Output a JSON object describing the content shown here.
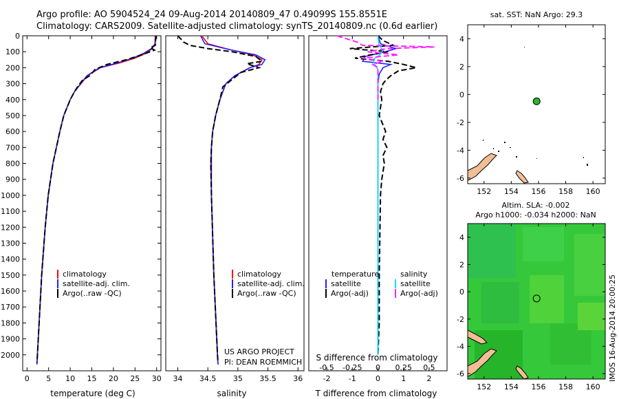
{
  "header": {
    "line1": "Argo profile: AO 5904524_24 09-Aug-2014 20140809_47 0.49099S 155.8551E",
    "line2": "Climatology: CARS2009. Satellite-adjusted climatology: synTS_20140809.nc (0.6d earlier)"
  },
  "footer_stamp": "IMOS 16-Aug-2014 20:00:25",
  "colors": {
    "red": "#ff0000",
    "blue": "#1f1fff",
    "black": "#000000",
    "cyan": "#00e5ff",
    "magenta": "#ff20ff",
    "green_dot": "#2db52d",
    "land": "#f2be96",
    "sla_field": "#33cc33"
  },
  "chart_data": [
    {
      "id": "temperature",
      "type": "line",
      "xlabel": "temperature (deg C)",
      "ylabel": "",
      "xlim": [
        -1,
        31
      ],
      "ylim": [
        2100,
        0
      ],
      "xticks": [
        0,
        5,
        10,
        15,
        20,
        25,
        30
      ],
      "yticks": [
        0,
        100,
        200,
        300,
        400,
        500,
        600,
        700,
        800,
        900,
        1000,
        1100,
        1200,
        1300,
        1400,
        1500,
        1600,
        1700,
        1800,
        1900,
        2000
      ],
      "legend": {
        "placement": "bottom-left",
        "entries": [
          "climatology",
          "satellite-adj. clim.",
          "Argo(..raw -QC)"
        ]
      },
      "series": [
        {
          "name": "climatology",
          "color": "red",
          "style": "solid",
          "depth": [
            0,
            50,
            80,
            110,
            140,
            170,
            200,
            250,
            300,
            350,
            400,
            500,
            600,
            700,
            800,
            1000,
            1200,
            1500,
            2000,
            2060
          ],
          "values": [
            29.7,
            29.6,
            29.0,
            27.5,
            25.0,
            21.5,
            17.0,
            14.0,
            12.5,
            11.0,
            10.0,
            8.5,
            7.6,
            6.8,
            6.0,
            4.9,
            4.2,
            3.4,
            2.4,
            2.3
          ]
        },
        {
          "name": "satellite-adj. clim.",
          "color": "blue",
          "style": "solid",
          "depth": [
            0,
            50,
            80,
            110,
            140,
            170,
            200,
            250,
            300,
            350,
            400,
            500,
            600,
            700,
            800,
            1000,
            1200,
            1500,
            2000,
            2060
          ],
          "values": [
            29.8,
            29.7,
            28.8,
            27.0,
            24.5,
            21.0,
            16.8,
            13.9,
            12.4,
            11.0,
            10.0,
            8.5,
            7.6,
            6.8,
            6.0,
            4.9,
            4.2,
            3.4,
            2.4,
            2.3
          ]
        },
        {
          "name": "Argo(..raw -QC)",
          "color": "black",
          "style": "dashed",
          "depth": [
            0,
            60,
            75,
            90,
            120,
            150,
            180,
            210,
            250,
            280,
            320,
            350,
            400,
            500,
            600,
            700,
            800,
            1000,
            1200,
            1500,
            2000,
            2050
          ],
          "values": [
            29.8,
            29.7,
            28.5,
            29.5,
            26.5,
            23.0,
            18.5,
            15.8,
            14.5,
            12.8,
            11.7,
            11.0,
            10.0,
            8.5,
            7.6,
            6.8,
            6.0,
            4.9,
            4.2,
            3.4,
            2.4,
            2.3
          ]
        }
      ]
    },
    {
      "id": "salinity",
      "type": "line",
      "xlabel": "salinity",
      "ylabel": "",
      "xlim": [
        33.8,
        36.1
      ],
      "ylim": [
        2100,
        0
      ],
      "xticks": [
        34,
        34.5,
        35,
        35.5,
        36
      ],
      "legend": {
        "placement": "bottom-right",
        "entries": [
          "climatology",
          "satellite-adj. clim.",
          "Argo(..raw -QC)"
        ]
      },
      "annotation": [
        "US ARGO PROJECT",
        "PI: DEAN ROEMMICH"
      ],
      "series": [
        {
          "name": "climatology",
          "color": "red",
          "style": "solid",
          "depth": [
            0,
            50,
            90,
            120,
            150,
            180,
            200,
            250,
            300,
            400,
            500,
            600,
            700,
            800,
            1000,
            1500,
            2000,
            2060
          ],
          "values": [
            34.4,
            34.5,
            34.9,
            35.25,
            35.4,
            35.35,
            35.2,
            34.95,
            34.8,
            34.7,
            34.63,
            34.58,
            34.56,
            34.55,
            34.56,
            34.6,
            34.66,
            34.67
          ]
        },
        {
          "name": "satellite-adj. clim.",
          "color": "blue",
          "style": "solid",
          "depth": [
            0,
            50,
            90,
            120,
            150,
            180,
            200,
            250,
            300,
            400,
            500,
            600,
            700,
            800,
            1000,
            1500,
            2000,
            2060
          ],
          "values": [
            34.38,
            34.45,
            34.9,
            35.3,
            35.45,
            35.4,
            35.2,
            34.95,
            34.8,
            34.7,
            34.63,
            34.58,
            34.56,
            34.56,
            34.56,
            34.6,
            34.66,
            34.67
          ]
        },
        {
          "name": "Argo(..raw -QC)",
          "color": "black",
          "style": "dashed",
          "depth": [
            0,
            20,
            40,
            60,
            80,
            100,
            130,
            160,
            175,
            200,
            230,
            260,
            290,
            320,
            400,
            500,
            600,
            700,
            800,
            1000,
            1500,
            2000,
            2050
          ],
          "values": [
            34.0,
            34.05,
            34.1,
            34.2,
            34.5,
            34.9,
            35.3,
            35.4,
            35.15,
            35.35,
            35.05,
            34.95,
            34.85,
            34.75,
            34.7,
            34.63,
            34.58,
            34.56,
            34.55,
            34.56,
            34.6,
            34.66,
            34.67
          ]
        }
      ]
    },
    {
      "id": "difference",
      "type": "line",
      "xlabel": "T difference from climatology",
      "xlabel_top": "S difference from climatology",
      "xlim": [
        -2.7,
        2.7
      ],
      "ylim": [
        2100,
        0
      ],
      "xticks": [
        -2,
        -1,
        0,
        1,
        2
      ],
      "s_tick_values": [
        -0.5,
        -0.25,
        0,
        0.25,
        0.5
      ],
      "s_tick_labels": [
        "-0.5",
        "-0.25",
        "0",
        "0.25",
        "0.5"
      ],
      "legend": {
        "placement": "bottom",
        "headers": [
          "temperature",
          "salinity"
        ],
        "entries": [
          "satellite",
          "Argo(-adj)",
          "satellite",
          "Argo(-adj)"
        ]
      },
      "series": [
        {
          "name": "satellite",
          "group": "temperature",
          "color": "blue",
          "style": "solid",
          "depth": [
            0,
            50,
            80,
            100,
            130,
            160,
            180,
            200,
            240,
            300,
            400,
            600,
            800,
            1000,
            1500,
            2000
          ],
          "values": [
            0.0,
            0.1,
            0.7,
            0.3,
            -0.5,
            -0.6,
            0.5,
            0.2,
            0.05,
            0.0,
            0.0,
            0.0,
            0.0,
            0.0,
            0.0,
            0.0
          ]
        },
        {
          "name": "Argo(-adj)",
          "group": "temperature",
          "color": "black",
          "style": "dashed",
          "depth": [
            0,
            30,
            60,
            80,
            100,
            120,
            140,
            160,
            180,
            200,
            220,
            250,
            280,
            300,
            350,
            400,
            450,
            500,
            600,
            650,
            700,
            750,
            800,
            900,
            1000,
            1200,
            1500,
            1800,
            2000
          ],
          "values": [
            0.0,
            0.2,
            0.6,
            -1.1,
            0.4,
            -0.3,
            -0.9,
            0.4,
            1.0,
            1.5,
            0.8,
            0.5,
            0.3,
            0.2,
            0.1,
            0.15,
            0.1,
            0.05,
            0.3,
            0.2,
            0.35,
            0.2,
            0.25,
            0.15,
            0.1,
            0.08,
            0.05,
            0.05,
            0.0
          ]
        },
        {
          "name": "satellite",
          "group": "salinity",
          "color": "cyan",
          "style": "solid",
          "depth": [
            0,
            60,
            90,
            120,
            150,
            180,
            210,
            260,
            300,
            400,
            600,
            800,
            1000,
            1500,
            2000
          ],
          "values": [
            0.0,
            0.01,
            0.05,
            0.02,
            -0.05,
            -0.03,
            0.0,
            0.0,
            0.0,
            0.0,
            0.0,
            0.0,
            0.0,
            0.0,
            0.0
          ]
        },
        {
          "name": "Argo(-adj)",
          "group": "salinity",
          "color": "magenta",
          "style": "dashed",
          "depth": [
            0,
            40,
            60,
            70,
            80,
            100,
            120,
            140,
            160,
            180,
            200,
            240,
            300,
            400
          ],
          "values": [
            -0.4,
            -0.2,
            -0.15,
            0.55,
            0.1,
            -0.1,
            0.2,
            -0.15,
            0.05,
            -0.05,
            0.0,
            0.0,
            0.0,
            0.0
          ]
        }
      ]
    },
    {
      "id": "sst-map",
      "type": "scatter",
      "title": "sat. SST: NaN Argo: 29.3",
      "xlim": [
        150.8,
        160.9
      ],
      "ylim": [
        -6.4,
        5.0
      ],
      "xticks": [
        152,
        154,
        156,
        158,
        160
      ],
      "yticks": [
        4,
        2,
        0,
        -2,
        -4,
        -6
      ],
      "points": [
        {
          "x": 155.86,
          "y": -0.49,
          "label": "Argo profile position"
        }
      ]
    },
    {
      "id": "sla-map",
      "type": "heatmap",
      "title_line1": "Altim. SLA: -0.002",
      "title_line2": "Argo h1000: -0.034 h2000: NaN",
      "xlim": [
        150.8,
        160.9
      ],
      "ylim": [
        -6.4,
        5.0
      ],
      "xticks": [
        152,
        154,
        156,
        158,
        160
      ],
      "yticks": [
        4,
        2,
        0,
        -2,
        -4,
        -6
      ],
      "points": [
        {
          "x": 155.86,
          "y": -0.49,
          "label": "Argo profile position"
        }
      ]
    }
  ]
}
